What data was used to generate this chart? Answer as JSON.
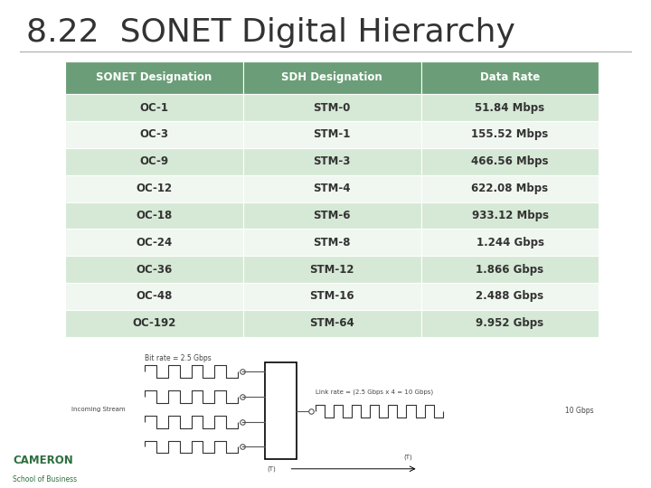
{
  "title": "8.22  SONET Digital Hierarchy",
  "title_fontsize": 26,
  "title_color": "#333333",
  "background_color": "#ffffff",
  "table_header": [
    "SONET Designation",
    "SDH Designation",
    "Data Rate"
  ],
  "table_rows": [
    [
      "OC-1",
      "STM-0",
      "51.84 Mbps"
    ],
    [
      "OC-3",
      "STM-1",
      "155.52 Mbps"
    ],
    [
      "OC-9",
      "STM-3",
      "466.56 Mbps"
    ],
    [
      "OC-12",
      "STM-4",
      "622.08 Mbps"
    ],
    [
      "OC-18",
      "STM-6",
      "933.12 Mbps"
    ],
    [
      "OC-24",
      "STM-8",
      "1.244 Gbps"
    ],
    [
      "OC-36",
      "STM-12",
      "1.866 Gbps"
    ],
    [
      "OC-48",
      "STM-16",
      "2.488 Gbps"
    ],
    [
      "OC-192",
      "STM-64",
      "9.952 Gbps"
    ]
  ],
  "header_bg": "#6b9e78",
  "header_text": "#ffffff",
  "row_bg_odd": "#d6e8d6",
  "row_bg_even": "#f0f7f0",
  "cell_text": "#333333",
  "divider_color": "#aaaaaa",
  "logo_color": "#2e6e3e"
}
